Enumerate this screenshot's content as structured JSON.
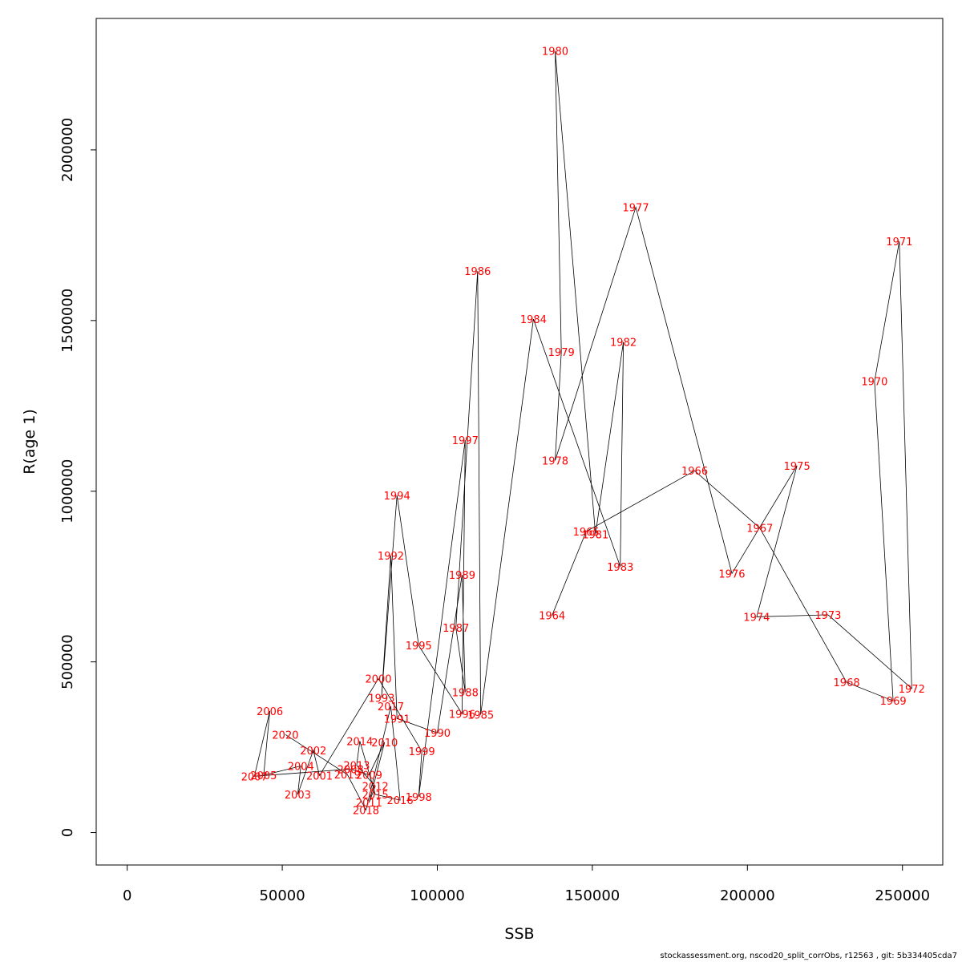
{
  "chart_data": {
    "type": "line",
    "title": "",
    "xlabel": "SSB",
    "ylabel": "R(age 1)",
    "xlim": [
      -10000,
      263000
    ],
    "ylim": [
      -95000,
      2385000
    ],
    "x_ticks": [
      0,
      50000,
      100000,
      150000,
      200000,
      250000
    ],
    "x_tick_labels": [
      "0",
      "50000",
      "100000",
      "150000",
      "200000",
      "250000"
    ],
    "y_ticks": [
      0,
      500000,
      1000000,
      1500000,
      2000000
    ],
    "y_tick_labels": [
      "0",
      "500000",
      "1000000",
      "1500000",
      "2000000"
    ],
    "grid": false,
    "line_color": "#000000",
    "label_color": "#ff0000",
    "points": [
      {
        "year": "1964",
        "x": 137000,
        "y": 636000
      },
      {
        "year": "1965",
        "x": 148000,
        "y": 882000
      },
      {
        "year": "1966",
        "x": 183000,
        "y": 1060000
      },
      {
        "year": "1967",
        "x": 204000,
        "y": 892000
      },
      {
        "year": "1968",
        "x": 232000,
        "y": 440000
      },
      {
        "year": "1969",
        "x": 247000,
        "y": 386000
      },
      {
        "year": "1970",
        "x": 241000,
        "y": 1322000
      },
      {
        "year": "1971",
        "x": 249000,
        "y": 1732000
      },
      {
        "year": "1972",
        "x": 253000,
        "y": 422000
      },
      {
        "year": "1973",
        "x": 226000,
        "y": 638000
      },
      {
        "year": "1974",
        "x": 203000,
        "y": 632000
      },
      {
        "year": "1975",
        "x": 216000,
        "y": 1075000
      },
      {
        "year": "1976",
        "x": 195000,
        "y": 759000
      },
      {
        "year": "1977",
        "x": 164000,
        "y": 1832000
      },
      {
        "year": "1978",
        "x": 138000,
        "y": 1090000
      },
      {
        "year": "1979",
        "x": 140000,
        "y": 1408000
      },
      {
        "year": "1980",
        "x": 138000,
        "y": 2290000
      },
      {
        "year": "1981",
        "x": 151000,
        "y": 874000
      },
      {
        "year": "1982",
        "x": 160000,
        "y": 1437000
      },
      {
        "year": "1983",
        "x": 159000,
        "y": 779000
      },
      {
        "year": "1984",
        "x": 131000,
        "y": 1504000
      },
      {
        "year": "1985",
        "x": 114000,
        "y": 345000
      },
      {
        "year": "1986",
        "x": 113000,
        "y": 1645000
      },
      {
        "year": "1987",
        "x": 106000,
        "y": 600000
      },
      {
        "year": "1988",
        "x": 109000,
        "y": 411000
      },
      {
        "year": "1989",
        "x": 108000,
        "y": 755000
      },
      {
        "year": "1990",
        "x": 100000,
        "y": 292000
      },
      {
        "year": "1991",
        "x": 87000,
        "y": 334000
      },
      {
        "year": "1992",
        "x": 85000,
        "y": 812000
      },
      {
        "year": "1993",
        "x": 82000,
        "y": 395000
      },
      {
        "year": "1994",
        "x": 87000,
        "y": 988000
      },
      {
        "year": "1995",
        "x": 94000,
        "y": 548000
      },
      {
        "year": "1996",
        "x": 108000,
        "y": 348000
      },
      {
        "year": "1997",
        "x": 109000,
        "y": 1150000
      },
      {
        "year": "1998",
        "x": 94000,
        "y": 105000
      },
      {
        "year": "1999",
        "x": 95000,
        "y": 238000
      },
      {
        "year": "2000",
        "x": 81000,
        "y": 451000
      },
      {
        "year": "2001",
        "x": 62000,
        "y": 167000
      },
      {
        "year": "2002",
        "x": 60000,
        "y": 241000
      },
      {
        "year": "2003",
        "x": 55000,
        "y": 112000
      },
      {
        "year": "2004",
        "x": 56000,
        "y": 195000
      },
      {
        "year": "2005",
        "x": 44000,
        "y": 168000
      },
      {
        "year": "2006",
        "x": 46000,
        "y": 356000
      },
      {
        "year": "2007",
        "x": 41000,
        "y": 165000
      },
      {
        "year": "2008",
        "x": 72000,
        "y": 186000
      },
      {
        "year": "2009",
        "x": 78000,
        "y": 169000
      },
      {
        "year": "2010",
        "x": 83000,
        "y": 264000
      },
      {
        "year": "2011",
        "x": 78000,
        "y": 88000
      },
      {
        "year": "2012",
        "x": 80000,
        "y": 136000
      },
      {
        "year": "2013",
        "x": 74000,
        "y": 197000
      },
      {
        "year": "2014",
        "x": 75000,
        "y": 268000
      },
      {
        "year": "2015",
        "x": 80000,
        "y": 112000
      },
      {
        "year": "2016",
        "x": 88000,
        "y": 95000
      },
      {
        "year": "2017",
        "x": 85000,
        "y": 370000
      },
      {
        "year": "2018",
        "x": 77000,
        "y": 66000
      },
      {
        "year": "2019",
        "x": 71000,
        "y": 170000
      },
      {
        "year": "2020",
        "x": 51000,
        "y": 287000
      }
    ]
  },
  "footer": {
    "text": "stockassessment.org, nscod20_split_corrObs, r12563 , git: 5b334405cda7"
  }
}
